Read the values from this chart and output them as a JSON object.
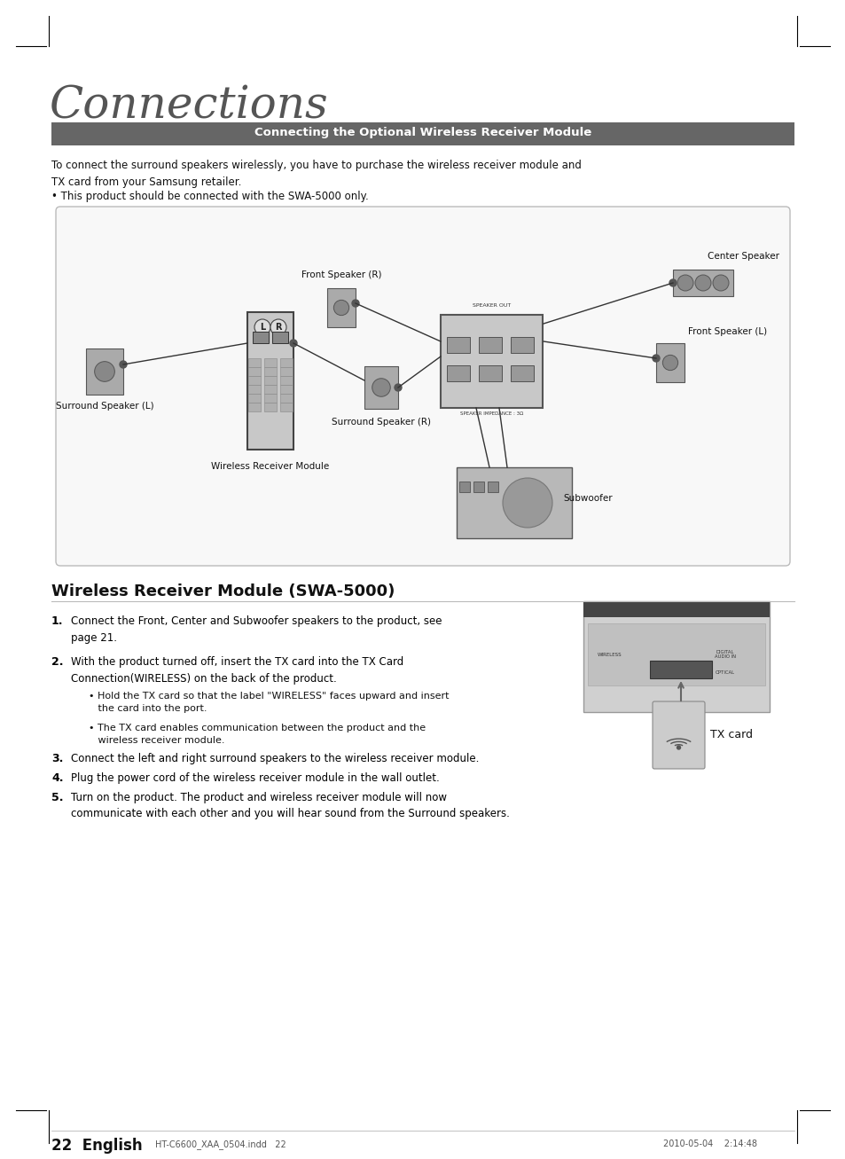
{
  "bg_color": "#ffffff",
  "title_text": "Connections",
  "section_header": "Connecting the Optional Wireless Receiver Module",
  "section_header_bg": "#666666",
  "section_header_color": "#ffffff",
  "para1": "To connect the surround speakers wirelessly, you have to purchase the wireless receiver module and\nTX card from your Samsung retailer.",
  "bullet1": "• This product should be connected with the SWA-5000 only.",
  "diagram_labels": {
    "center_speaker": "Center Speaker",
    "front_r": "Front Speaker (R)",
    "front_l": "Front Speaker (L)",
    "surround_l": "Surround Speaker (L)",
    "surround_r": "Surround Speaker (R)",
    "subwoofer": "Subwoofer",
    "wireless_module": "Wireless Receiver Module"
  },
  "section2_title": "Wireless Receiver Module (SWA-5000)",
  "steps": [
    {
      "num": "1.",
      "text": "Connect the Front, Center and Subwoofer speakers to the product, see\npage 21."
    },
    {
      "num": "2.",
      "text": "With the product turned off, insert the TX card into the TX Card\nConnection(WIRELESS) on the back of the product."
    },
    {
      "num": "3.",
      "text": "Connect the left and right surround speakers to the wireless receiver module."
    },
    {
      "num": "4.",
      "text": "Plug the power cord of the wireless receiver module in the wall outlet."
    },
    {
      "num": "5.",
      "text": "Turn on the product. The product and wireless receiver module will now\ncommunicate with each other and you will hear sound from the Surround speakers."
    }
  ],
  "sub_bullets": [
    "• Hold the TX card so that the label \"WIRELESS\" faces upward and insert\n   the card into the port.",
    "• The TX card enables communication between the product and the\n   wireless receiver module."
  ],
  "tx_card_label": "TX card",
  "footer_left": "22  English",
  "footer_file": "HT-C6600_XAA_0504.indd   22",
  "footer_date": "2010-05-04    2:14:48"
}
